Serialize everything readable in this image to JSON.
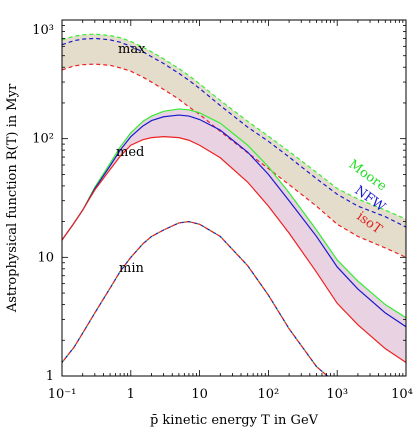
{
  "chart_data": {
    "type": "line",
    "x_scale": "log",
    "y_scale": "log",
    "xlim": [
      0.1,
      10000
    ],
    "ylim": [
      1,
      1000
    ],
    "xlabel": "p̄ kinetic energy T in GeV",
    "ylabel": "Astrophysical function R(T) in Myr",
    "x_tick_labels": [
      "10⁻¹",
      "1",
      "10",
      "10²",
      "10³",
      "10⁴"
    ],
    "x_tick_values": [
      0.1,
      1,
      10,
      100,
      1000,
      10000
    ],
    "y_tick_labels": [
      "1",
      "10",
      "10²",
      "10³"
    ],
    "y_tick_values": [
      1,
      10,
      100,
      1000
    ],
    "grid": false,
    "series_labels": [
      {
        "text": "Moore",
        "color": "#22dd22"
      },
      {
        "text": "NFW",
        "color": "#1a1acc"
      },
      {
        "text": "isoT",
        "color": "#dd2222"
      }
    ],
    "case_labels": [
      "max",
      "med",
      "min"
    ],
    "colors": {
      "moore": "#33ee33",
      "nfw": "#1a1acc",
      "isot": "#ee2222",
      "max_band": "#e5ddcb",
      "med_band": "#e9d3e3"
    },
    "x": [
      0.1,
      0.15,
      0.2,
      0.3,
      0.5,
      0.7,
      1,
      1.5,
      2,
      3,
      5,
      7,
      10,
      20,
      50,
      100,
      200,
      500,
      1000,
      2000,
      5000,
      10000
    ],
    "max": {
      "style": "dashed",
      "series": [
        {
          "name": "Moore",
          "values": [
            680,
            730,
            750,
            760,
            740,
            710,
            660,
            590,
            540,
            470,
            390,
            340,
            290,
            210,
            140,
            105,
            78,
            52,
            38,
            31,
            25,
            21
          ]
        },
        {
          "name": "NFW",
          "values": [
            620,
            670,
            690,
            700,
            680,
            650,
            600,
            540,
            490,
            430,
            355,
            310,
            265,
            190,
            125,
            95,
            70,
            46,
            34,
            27,
            22,
            18
          ]
        },
        {
          "name": "isoT",
          "values": [
            380,
            410,
            420,
            425,
            415,
            395,
            370,
            330,
            300,
            260,
            215,
            185,
            160,
            115,
            76,
            56,
            41,
            27,
            19,
            15,
            12,
            10
          ]
        }
      ]
    },
    "med": {
      "style": "solid",
      "series": [
        {
          "name": "Moore",
          "values": [
            14,
            19.5,
            25,
            39,
            62,
            85,
            112,
            140,
            155,
            170,
            178,
            175,
            165,
            135,
            88,
            58,
            35,
            17,
            9.5,
            6.3,
            4.0,
            3.1
          ]
        },
        {
          "name": "NFW",
          "values": [
            14,
            19.5,
            25,
            38,
            59,
            80,
            104,
            128,
            142,
            153,
            158,
            155,
            145,
            118,
            77,
            50,
            30,
            15,
            8.3,
            5.4,
            3.4,
            2.6
          ]
        },
        {
          "name": "isoT",
          "values": [
            14,
            19.5,
            25,
            37,
            55,
            71,
            88,
            98,
            102,
            104,
            102,
            97,
            88,
            69,
            43,
            27,
            16,
            7.5,
            4.1,
            2.7,
            1.7,
            1.3
          ]
        }
      ]
    },
    "min": {
      "style": "dashed",
      "x": [
        0.1,
        0.15,
        0.2,
        0.3,
        0.5,
        0.7,
        1,
        1.5,
        2,
        3,
        5,
        7,
        10,
        20,
        50,
        100,
        200,
        500,
        1000
      ],
      "series": [
        {
          "name": "Moore",
          "values": [
            1.3,
            1.75,
            2.3,
            3.4,
            5.5,
            7.6,
            10,
            13,
            15,
            17,
            19.5,
            20,
            19,
            15,
            8.5,
            4.8,
            2.5,
            1.2,
            0.85
          ]
        },
        {
          "name": "NFW",
          "values": [
            1.3,
            1.75,
            2.3,
            3.4,
            5.5,
            7.6,
            10,
            13,
            15,
            17,
            19.5,
            20,
            19,
            15,
            8.5,
            4.8,
            2.5,
            1.2,
            0.85
          ]
        },
        {
          "name": "isoT",
          "values": [
            1.3,
            1.75,
            2.3,
            3.4,
            5.5,
            7.6,
            10,
            13,
            15,
            17,
            19.5,
            20,
            19,
            15,
            8.5,
            4.8,
            2.5,
            1.2,
            0.85
          ]
        }
      ]
    }
  }
}
